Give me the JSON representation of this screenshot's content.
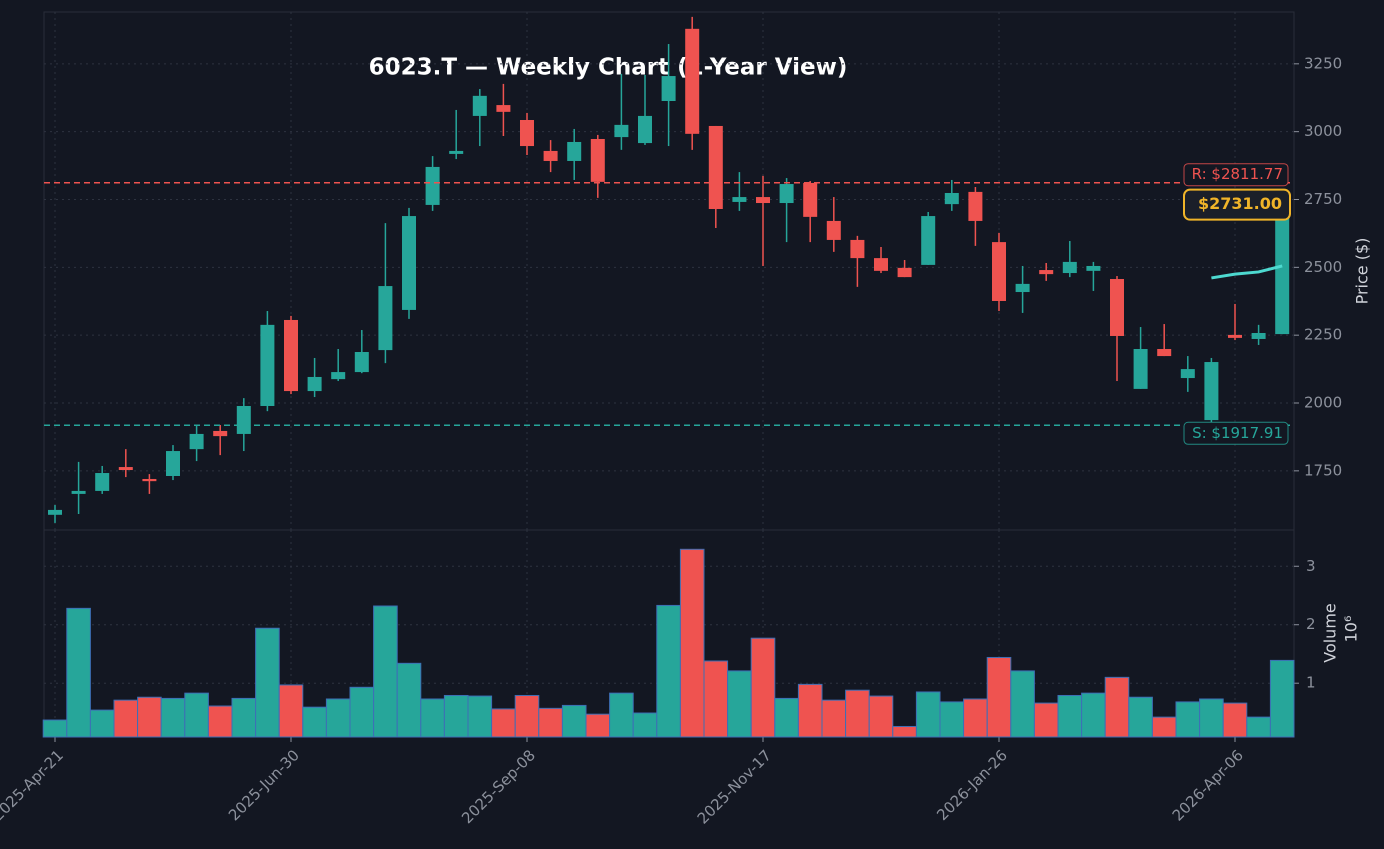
{
  "chart_data": {
    "type": "candlestick",
    "title": "6023.T — Weekly Chart (1-Year View)",
    "y_label": "Price ($)",
    "categories": [
      "2025-Apr-21",
      null,
      null,
      null,
      null,
      null,
      null,
      null,
      null,
      null,
      "2025-Jun-30",
      null,
      null,
      null,
      null,
      null,
      null,
      null,
      null,
      null,
      "2025-Sep-08",
      null,
      null,
      null,
      null,
      null,
      null,
      null,
      null,
      null,
      "2025-Nov-17",
      null,
      null,
      null,
      null,
      null,
      null,
      null,
      null,
      null,
      "2026-Jan-26",
      null,
      null,
      null,
      null,
      null,
      null,
      null,
      null,
      null,
      "2026-Apr-06",
      null,
      null
    ],
    "open": [
      1588,
      1665,
      1676,
      1764,
      1720,
      1731,
      1830,
      1897,
      1886,
      1989,
      2306,
      2044,
      2088,
      2114,
      2195,
      2343,
      2730,
      2918,
      3058,
      3098,
      3043,
      2929,
      2892,
      2973,
      2980,
      2958,
      3113,
      3379,
      3021,
      2741,
      2759,
      2737,
      2811,
      2671,
      2601,
      2534,
      2498,
      2509,
      2733,
      2778,
      2593,
      2409,
      2490,
      2479,
      2487,
      2457,
      2052,
      2199,
      2092,
      1937,
      2251,
      2236,
      2254
    ],
    "high": [
      1624,
      1783,
      1768,
      1830,
      1738,
      1845,
      1919,
      1919,
      2018,
      2339,
      2321,
      2166,
      2199,
      2269,
      2663,
      2719,
      2910,
      3080,
      3157,
      3176,
      3069,
      2969,
      3010,
      2988,
      3213,
      3209,
      3323,
      3423,
      3021,
      2851,
      2837,
      2829,
      2818,
      2759,
      2616,
      2575,
      2527,
      2704,
      2822,
      2796,
      2627,
      2505,
      2516,
      2597,
      2520,
      2468,
      2280,
      2291,
      2173,
      2166,
      2365,
      2288,
      2740
    ],
    "low": [
      1558,
      1591,
      1665,
      1727,
      1665,
      1716,
      1786,
      1808,
      1823,
      1970,
      2033,
      2022,
      2081,
      2110,
      2147,
      2310,
      2708,
      2899,
      2947,
      2984,
      2914,
      2851,
      2822,
      2756,
      2933,
      2951,
      2947,
      2933,
      2645,
      2708,
      2505,
      2593,
      2593,
      2557,
      2428,
      2479,
      2464,
      2509,
      2708,
      2579,
      2339,
      2332,
      2450,
      2464,
      2413,
      2081,
      2052,
      2173,
      2041,
      1930,
      2232,
      2214,
      2254
    ],
    "close": [
      1606,
      1676,
      1742,
      1753,
      1712,
      1823,
      1886,
      1878,
      1989,
      2288,
      2044,
      2096,
      2114,
      2188,
      2431,
      2689,
      2870,
      2929,
      3132,
      3073,
      2947,
      2892,
      2962,
      2815,
      3025,
      3058,
      3205,
      2992,
      2715,
      2759,
      2737,
      2807,
      2686,
      2601,
      2534,
      2487,
      2464,
      2689,
      2774,
      2671,
      2376,
      2439,
      2475,
      2520,
      2505,
      2247,
      2199,
      2173,
      2125,
      2151,
      2240,
      2258,
      2731
    ],
    "up_color": "#26a69a",
    "down_color": "#ef5350",
    "ylim": [
      1532,
      3441
    ],
    "yticks": [
      1750,
      2000,
      2250,
      2500,
      2750,
      3000,
      3250
    ],
    "grid": true,
    "ma_values": [
      null,
      null,
      null,
      null,
      null,
      null,
      null,
      null,
      null,
      null,
      null,
      null,
      null,
      null,
      null,
      null,
      null,
      null,
      null,
      null,
      null,
      null,
      null,
      null,
      null,
      null,
      null,
      null,
      null,
      null,
      null,
      null,
      null,
      null,
      null,
      null,
      null,
      null,
      null,
      null,
      null,
      null,
      null,
      null,
      null,
      null,
      null,
      null,
      null,
      2461,
      2475,
      2483,
      2505
    ],
    "ma_color": "#4dd9d0",
    "resistance": {
      "value": 2811.77,
      "label": "R: $2811.77"
    },
    "support": {
      "value": 1917.91,
      "label": "S: $1917.91"
    },
    "last_price": {
      "value": 2731.0,
      "label": "$2731.00"
    },
    "volume": {
      "y_label": "Volume",
      "offset_label": "10⁶",
      "values": [
        0.37,
        2.28,
        0.54,
        0.71,
        0.76,
        0.74,
        0.83,
        0.61,
        0.74,
        1.94,
        0.97,
        0.59,
        0.73,
        0.93,
        2.32,
        1.34,
        0.73,
        0.79,
        0.78,
        0.56,
        0.79,
        0.57,
        0.62,
        0.47,
        0.83,
        0.49,
        2.33,
        3.29,
        1.38,
        1.21,
        1.77,
        0.74,
        0.98,
        0.71,
        0.88,
        0.78,
        0.26,
        0.85,
        0.68,
        0.73,
        1.44,
        1.21,
        0.66,
        0.79,
        0.83,
        1.1,
        0.76,
        0.42,
        0.68,
        0.73,
        0.66,
        0.42,
        1.39
      ],
      "ylim": [
        0.08,
        3.62
      ],
      "yticks": [
        1,
        2,
        3
      ]
    }
  }
}
